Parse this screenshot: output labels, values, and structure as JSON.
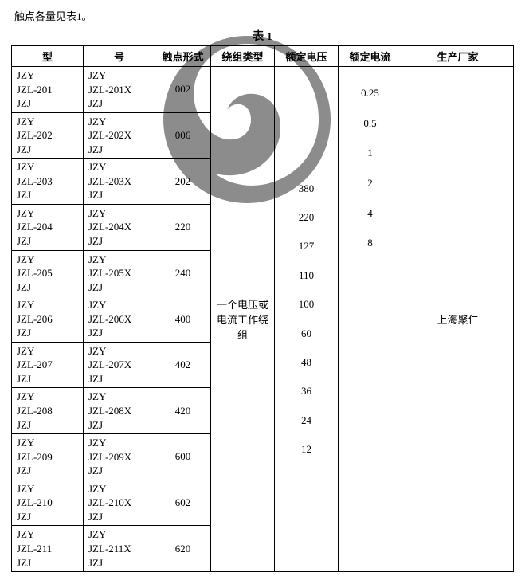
{
  "fragment_text": "触点各量见表1。",
  "caption": "表 1",
  "headers": {
    "model_left": "型",
    "model_right": "号",
    "contact": "触点形式",
    "winding": "绕组类型",
    "voltage": "额定电压",
    "current": "额定电流",
    "manufacturer": "生产厂家"
  },
  "rows": [
    {
      "a": [
        "JZY",
        "JZL-201",
        "JZJ"
      ],
      "b": [
        "JZY",
        "JZL-201X",
        "JZJ"
      ],
      "contact": "002"
    },
    {
      "a": [
        "JZY",
        "JZL-202",
        "JZJ"
      ],
      "b": [
        "JZY",
        "JZL-202X",
        "JZJ"
      ],
      "contact": "006"
    },
    {
      "a": [
        "JZY",
        "JZL-203",
        "JZJ"
      ],
      "b": [
        "JZY",
        "JZL-203X",
        "JZJ"
      ],
      "contact": "202"
    },
    {
      "a": [
        "JZY",
        "JZL-204",
        "JZJ"
      ],
      "b": [
        "JZY",
        "JZL-204X",
        "JZJ"
      ],
      "contact": "220"
    },
    {
      "a": [
        "JZY",
        "JZL-205",
        "JZJ"
      ],
      "b": [
        "JZY",
        "JZL-205X",
        "JZJ"
      ],
      "contact": "240"
    },
    {
      "a": [
        "JZY",
        "JZL-206",
        "JZJ"
      ],
      "b": [
        "JZY",
        "JZL-206X",
        "JZJ"
      ],
      "contact": "400"
    },
    {
      "a": [
        "JZY",
        "JZL-207",
        "JZJ"
      ],
      "b": [
        "JZY",
        "JZL-207X",
        "JZJ"
      ],
      "contact": "402"
    },
    {
      "a": [
        "JZY",
        "JZL-208",
        "JZJ"
      ],
      "b": [
        "JZY",
        "JZL-208X",
        "JZJ"
      ],
      "contact": "420"
    },
    {
      "a": [
        "JZY",
        "JZL-209",
        "JZJ"
      ],
      "b": [
        "JZY",
        "JZL-209X",
        "JZJ"
      ],
      "contact": "600"
    },
    {
      "a": [
        "JZY",
        "JZL-210",
        "JZJ"
      ],
      "b": [
        "JZY",
        "JZL-210X",
        "JZJ"
      ],
      "contact": "602"
    },
    {
      "a": [
        "JZY",
        "JZL-211",
        "JZJ"
      ],
      "b": [
        "JZY",
        "JZL-211X",
        "JZJ"
      ],
      "contact": "620"
    }
  ],
  "winding_label": "一个电压或电流工作绕组",
  "voltages": [
    "380",
    "220",
    "127",
    "110",
    "100",
    "60",
    "48",
    "36",
    "24",
    "12"
  ],
  "currents": [
    "0.25",
    "0.5",
    "1",
    "2",
    "4",
    "8"
  ],
  "manufacturer": "上海聚仁",
  "style": {
    "watermark_color": "#8c8c8c",
    "border_color": "#000000",
    "font_size_body": 13,
    "font_size_caption": 14
  }
}
